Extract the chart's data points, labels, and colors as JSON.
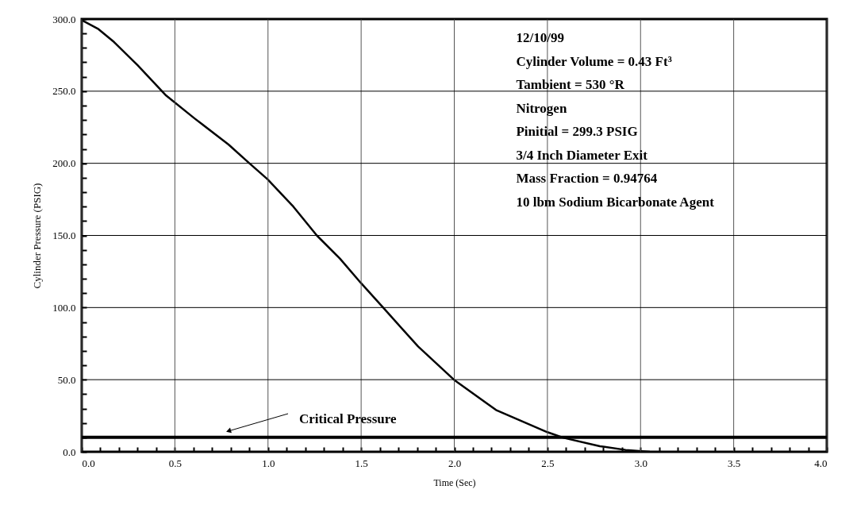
{
  "chart_data": {
    "type": "line",
    "xlabel": "Time (Sec)",
    "ylabel": "Cylinder Pressure (PSIG)",
    "x": [
      0,
      0.09,
      0.174,
      0.3,
      0.453,
      0.607,
      0.788,
      0.9,
      0.997,
      1.136,
      1.262,
      1.386,
      1.499,
      1.625,
      1.806,
      1.998,
      2.224,
      2.5,
      2.587,
      2.782,
      2.92,
      3.05
    ],
    "series": [
      {
        "color": "#000000",
        "values": [
          299.3,
          293,
          284,
          268,
          247,
          231,
          213,
          200,
          189,
          170,
          150,
          134,
          117,
          99,
          73,
          50,
          29,
          13.6,
          9.7,
          3.9,
          1.3,
          0
        ]
      }
    ],
    "xlim": [
      0,
      4
    ],
    "ylim": [
      0,
      300
    ],
    "xticks": [
      {
        "value": 0,
        "label": "0.0"
      },
      {
        "value": 0.1,
        "label": null
      },
      {
        "value": 0.2,
        "label": null
      },
      {
        "value": 0.3,
        "label": null
      },
      {
        "value": 0.4,
        "label": null
      },
      {
        "value": 0.5,
        "label": "0.5"
      },
      {
        "value": 0.6,
        "label": null
      },
      {
        "value": 0.7,
        "label": null
      },
      {
        "value": 0.8,
        "label": null
      },
      {
        "value": 0.9,
        "label": null
      },
      {
        "value": 1,
        "label": "1.0"
      },
      {
        "value": 1.1,
        "label": null
      },
      {
        "value": 1.2,
        "label": null
      },
      {
        "value": 1.3,
        "label": null
      },
      {
        "value": 1.4,
        "label": null
      },
      {
        "value": 1.5,
        "label": "1.5"
      },
      {
        "value": 1.6,
        "label": null
      },
      {
        "value": 1.7,
        "label": null
      },
      {
        "value": 1.8,
        "label": null
      },
      {
        "value": 1.9,
        "label": null
      },
      {
        "value": 2,
        "label": "2.0"
      },
      {
        "value": 2.1,
        "label": null
      },
      {
        "value": 2.2,
        "label": null
      },
      {
        "value": 2.3,
        "label": null
      },
      {
        "value": 2.4,
        "label": null
      },
      {
        "value": 2.5,
        "label": "2.5"
      },
      {
        "value": 2.6,
        "label": null
      },
      {
        "value": 2.7,
        "label": null
      },
      {
        "value": 2.8,
        "label": null
      },
      {
        "value": 2.9,
        "label": null
      },
      {
        "value": 3,
        "label": "3.0"
      },
      {
        "value": 3.1,
        "label": null
      },
      {
        "value": 3.2,
        "label": null
      },
      {
        "value": 3.3,
        "label": null
      },
      {
        "value": 3.4,
        "label": null
      },
      {
        "value": 3.5,
        "label": "3.5"
      },
      {
        "value": 3.6,
        "label": null
      },
      {
        "value": 3.7,
        "label": null
      },
      {
        "value": 3.8,
        "label": null
      },
      {
        "value": 3.9,
        "label": null
      },
      {
        "value": 4,
        "label": "4.0"
      }
    ],
    "yticks": [
      {
        "value": 0,
        "label": "0.0"
      },
      {
        "value": 10,
        "label": null
      },
      {
        "value": 20,
        "label": null
      },
      {
        "value": 30,
        "label": null
      },
      {
        "value": 40,
        "label": null
      },
      {
        "value": 50,
        "label": "50.0"
      },
      {
        "value": 60,
        "label": null
      },
      {
        "value": 70,
        "label": null
      },
      {
        "value": 80,
        "label": null
      },
      {
        "value": 90,
        "label": null
      },
      {
        "value": 100,
        "label": "100.0"
      },
      {
        "value": 110,
        "label": null
      },
      {
        "value": 120,
        "label": null
      },
      {
        "value": 130,
        "label": null
      },
      {
        "value": 140,
        "label": null
      },
      {
        "value": 150,
        "label": "150.0"
      },
      {
        "value": 160,
        "label": null
      },
      {
        "value": 170,
        "label": null
      },
      {
        "value": 180,
        "label": null
      },
      {
        "value": 190,
        "label": null
      },
      {
        "value": 200,
        "label": "200.0"
      },
      {
        "value": 210,
        "label": null
      },
      {
        "value": 220,
        "label": null
      },
      {
        "value": 230,
        "label": null
      },
      {
        "value": 240,
        "label": null
      },
      {
        "value": 250,
        "label": "250.0"
      },
      {
        "value": 260,
        "label": null
      },
      {
        "value": 270,
        "label": null
      },
      {
        "value": 280,
        "label": null
      },
      {
        "value": 290,
        "label": null
      },
      {
        "value": 300,
        "label": "300.0"
      }
    ],
    "grid": true,
    "line_style": "solid",
    "ref_lines": [
      {
        "axis": "y",
        "value": 10,
        "color": "#000000"
      }
    ],
    "annotations": [
      "12/10/99",
      "Cylinder Volume = 0.43 Ft³",
      "Tambient = 530 °R",
      "Nitrogen",
      "Pinitial = 299.3 PSIG",
      "3/4 Inch Diameter Exit",
      "Mass Fraction = 0.94764",
      "10 lbm Sodium Bicarbonate Agent",
      "Critical Pressure"
    ]
  }
}
